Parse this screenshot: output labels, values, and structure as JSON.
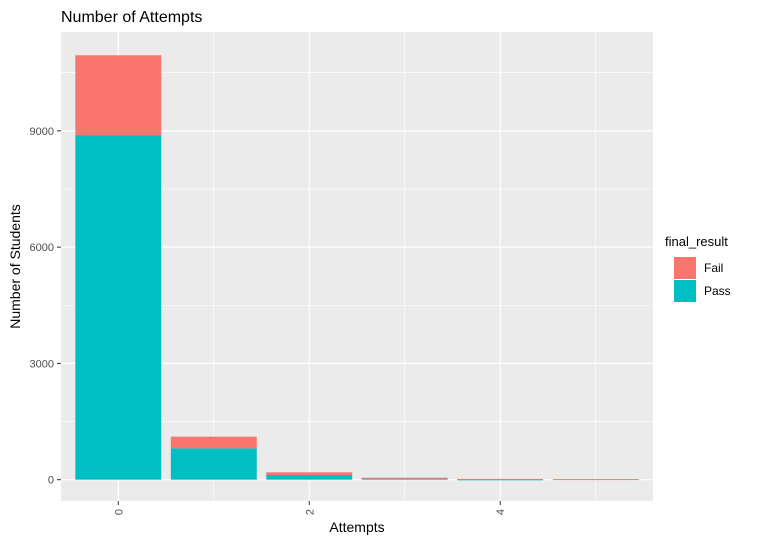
{
  "chart_data": {
    "type": "bar",
    "stacked": true,
    "title": "Number of Attempts",
    "xlabel": "Attempts",
    "ylabel": "Number of Students",
    "x": [
      0,
      1,
      2,
      3,
      4,
      5
    ],
    "x_ticks": [
      "0",
      "2",
      "4"
    ],
    "x_tick_values": [
      0,
      2,
      4
    ],
    "y_ticks": [
      "0",
      "3000",
      "6000",
      "9000"
    ],
    "y_tick_values": [
      0,
      3000,
      6000,
      9000
    ],
    "xlim": [
      -0.6,
      5.6
    ],
    "ylim": [
      -550,
      11550
    ],
    "grid": true,
    "legend": {
      "title": "final_result",
      "position": "right"
    },
    "series": [
      {
        "name": "Fail",
        "color": "#F8766D",
        "values": [
          2060,
          300,
          70,
          20,
          10,
          15
        ]
      },
      {
        "name": "Pass",
        "color": "#00BFC4",
        "values": [
          8890,
          810,
          120,
          30,
          10,
          0
        ]
      }
    ]
  }
}
